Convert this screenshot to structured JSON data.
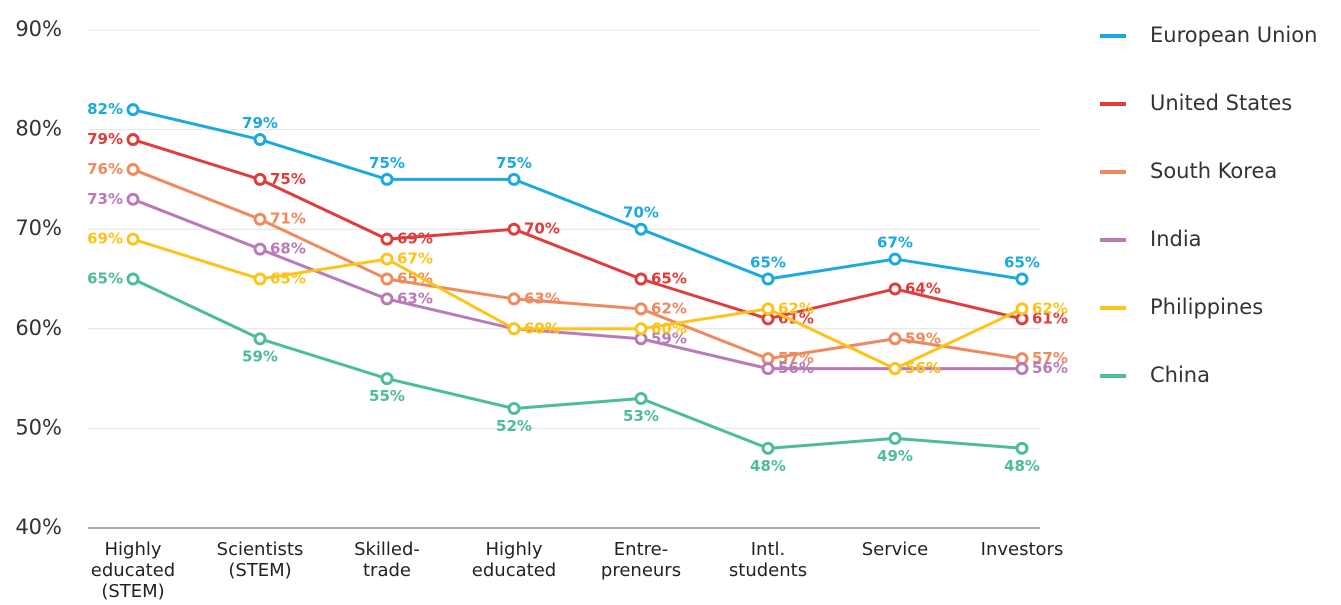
{
  "chart_data": {
    "type": "line",
    "categories": [
      [
        "Highly",
        "educated",
        "(STEM)"
      ],
      [
        "Scientists",
        "(STEM)"
      ],
      [
        "Skilled-",
        "trade"
      ],
      [
        "Highly",
        "educated"
      ],
      [
        "Entre-",
        "preneurs"
      ],
      [
        "Intl.",
        "students"
      ],
      [
        "Service"
      ],
      [
        "Investors"
      ]
    ],
    "ylim": [
      40,
      90
    ],
    "yticks": [
      {
        "value": 40,
        "label": "40%"
      },
      {
        "value": 50,
        "label": "50%"
      },
      {
        "value": 60,
        "label": "60%"
      },
      {
        "value": 70,
        "label": "70%"
      },
      {
        "value": 80,
        "label": "80%"
      },
      {
        "value": 90,
        "label": "90%"
      }
    ],
    "grid": true,
    "legend": "right",
    "series": [
      {
        "name": "European Union",
        "color": "#1ba9e0",
        "values": [
          82,
          79,
          75,
          75,
          70,
          65,
          67,
          65
        ],
        "value_labels": [
          "82%",
          "79%",
          "75%",
          "75%",
          "70%",
          "65%",
          "67%",
          "65%"
        ]
      },
      {
        "name": "United States",
        "color": "#e03c3c",
        "values": [
          79,
          75,
          69,
          70,
          65,
          61,
          64,
          61
        ],
        "value_labels": [
          "79%",
          "75%",
          "69%",
          "70%",
          "65%",
          "61%",
          "64%",
          "61%"
        ]
      },
      {
        "name": "South Korea",
        "color": "#ee8a5e",
        "values": [
          76,
          71,
          65,
          63,
          62,
          57,
          59,
          57
        ],
        "value_labels": [
          "76%",
          "71%",
          "65%",
          "63%",
          "62%",
          "57%",
          "59%",
          "57%"
        ]
      },
      {
        "name": "India",
        "color": "#b97ab8",
        "values": [
          73,
          68,
          63,
          60,
          59,
          56,
          56,
          56
        ],
        "value_labels": [
          "73%",
          "68%",
          "63%",
          "60%",
          "59%",
          "56%",
          "56%",
          "56%"
        ]
      },
      {
        "name": "Philippines",
        "color": "#fcc419",
        "values": [
          69,
          65,
          67,
          60,
          60,
          62,
          56,
          62
        ],
        "value_labels": [
          "69%",
          "65%",
          "67%",
          "60%",
          "60%",
          "62%",
          "56%",
          "62%"
        ]
      },
      {
        "name": "China",
        "color": "#4dbd98",
        "values": [
          65,
          59,
          55,
          52,
          53,
          48,
          49,
          48
        ],
        "value_labels": [
          "65%",
          "59%",
          "55%",
          "52%",
          "53%",
          "48%",
          "49%",
          "48%"
        ]
      }
    ]
  }
}
